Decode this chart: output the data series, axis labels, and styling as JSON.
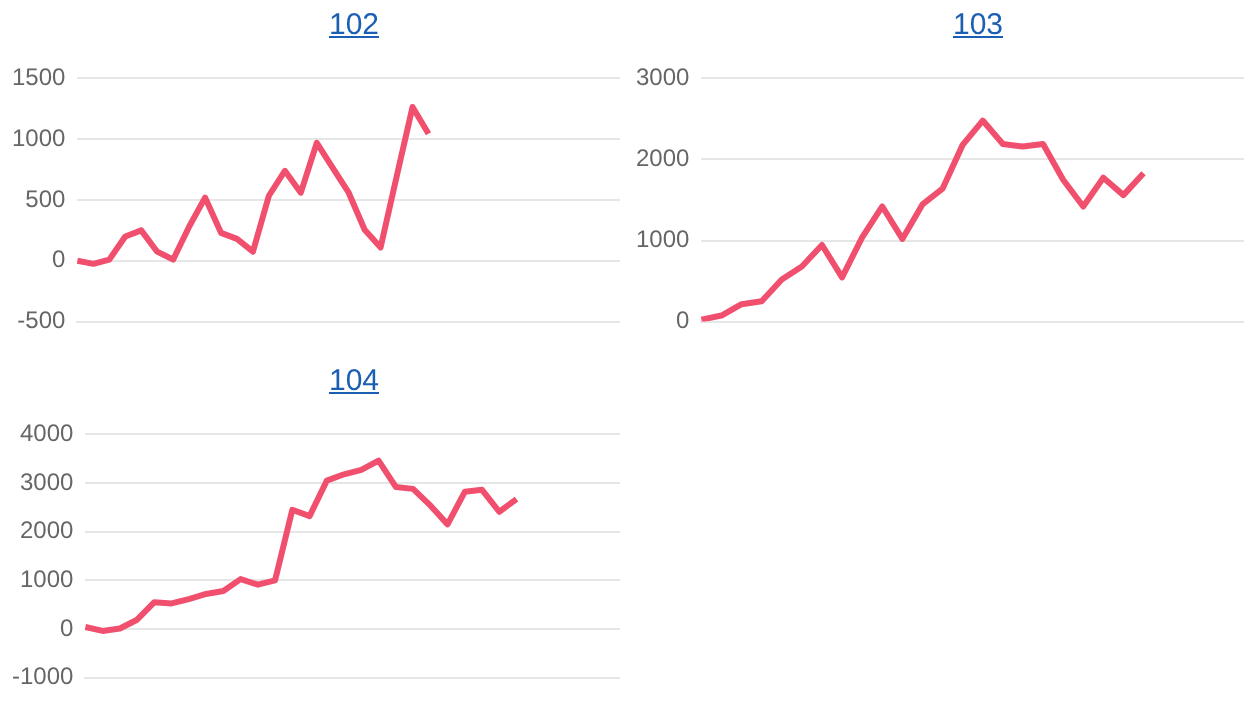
{
  "chart_data": [
    {
      "type": "line",
      "title": "102",
      "categories": [
        null,
        null,
        null,
        null,
        null,
        null,
        null,
        null,
        null,
        null,
        null,
        null,
        null,
        null,
        null,
        null,
        null,
        null,
        null,
        null,
        null,
        null,
        null,
        null,
        null,
        null,
        null,
        null,
        null,
        null,
        null,
        null,
        null,
        null,
        null
      ],
      "series": [
        {
          "color": "#f0506e",
          "values": [
            0,
            -25,
            10,
            200,
            250,
            75,
            10,
            280,
            520,
            230,
            180,
            75,
            535,
            740,
            560,
            970,
            765,
            560,
            255,
            110,
            690,
            1265,
            1045,
            null,
            null,
            null,
            null,
            null,
            null,
            null,
            null,
            null,
            null,
            null,
            null
          ]
        }
      ],
      "ylim": [
        -500,
        1500
      ],
      "yticks": [
        -500,
        0,
        500,
        1000,
        1500
      ],
      "grid": "y",
      "legend": false,
      "marker": "none",
      "line_style": "solid",
      "tick_labels": "y"
    },
    {
      "type": "line",
      "title": "103",
      "categories": [
        null,
        null,
        null,
        null,
        null,
        null,
        null,
        null,
        null,
        null,
        null,
        null,
        null,
        null,
        null,
        null,
        null,
        null,
        null,
        null,
        null,
        null,
        null,
        null,
        null,
        null,
        null,
        null
      ],
      "series": [
        {
          "color": "#f0506e",
          "values": [
            25,
            75,
            215,
            250,
            520,
            680,
            945,
            545,
            1040,
            1420,
            1020,
            1445,
            1640,
            2180,
            2480,
            2190,
            2160,
            2190,
            1750,
            1420,
            1775,
            1560,
            1830,
            null,
            null,
            null,
            null,
            null
          ]
        }
      ],
      "ylim": [
        0,
        3000
      ],
      "yticks": [
        0,
        1000,
        2000,
        3000
      ],
      "grid": "y",
      "legend": false,
      "marker": "none",
      "line_style": "solid",
      "tick_labels": "y"
    },
    {
      "type": "line",
      "title": "104",
      "categories": [
        null,
        null,
        null,
        null,
        null,
        null,
        null,
        null,
        null,
        null,
        null,
        null,
        null,
        null,
        null,
        null,
        null,
        null,
        null,
        null,
        null,
        null,
        null,
        null,
        null,
        null,
        null,
        null,
        null,
        null,
        null,
        null
      ],
      "series": [
        {
          "color": "#f0506e",
          "values": [
            40,
            -40,
            10,
            190,
            550,
            525,
            615,
            720,
            780,
            1025,
            910,
            1000,
            2450,
            2320,
            3050,
            3180,
            3270,
            3460,
            2920,
            2880,
            2540,
            2150,
            2820,
            2860,
            2410,
            2670,
            null,
            null,
            null,
            null,
            null,
            null
          ]
        }
      ],
      "ylim": [
        -1000,
        4000
      ],
      "yticks": [
        -1000,
        0,
        1000,
        2000,
        3000,
        4000
      ],
      "grid": "y",
      "legend": false,
      "marker": "none",
      "line_style": "solid",
      "tick_labels": "y"
    }
  ]
}
